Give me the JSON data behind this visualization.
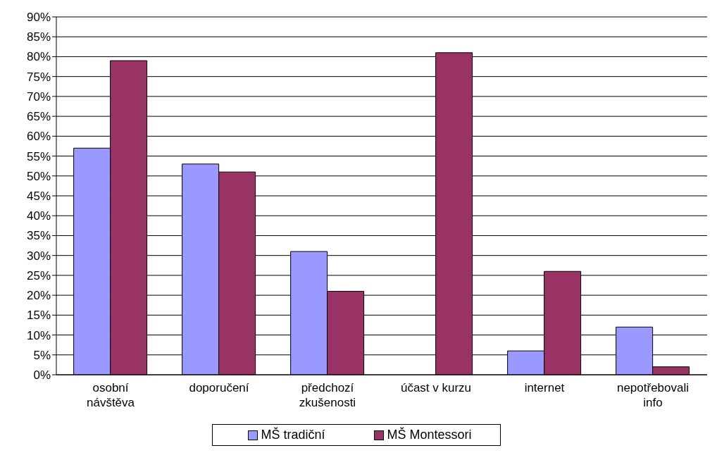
{
  "chart_data": {
    "type": "bar",
    "categories": [
      "osobní návštěva",
      "doporučení",
      "předchozí zkušenosti",
      "účast v kurzu",
      "internet",
      "nepotřebovali info"
    ],
    "series": [
      {
        "name": "MŠ tradiční",
        "color": "#9999ff",
        "values": [
          57,
          53,
          31,
          0,
          6,
          12
        ]
      },
      {
        "name": "MŠ Montessori",
        "color": "#993366",
        "values": [
          79,
          51,
          21,
          81,
          26,
          2
        ]
      }
    ],
    "ylim": [
      0,
      90
    ],
    "yticks": [
      {
        "value": 0,
        "label": "0%"
      },
      {
        "value": 5,
        "label": "5%"
      },
      {
        "value": 10,
        "label": "10%"
      },
      {
        "value": 15,
        "label": "15%"
      },
      {
        "value": 20,
        "label": "20%"
      },
      {
        "value": 25,
        "label": "25%"
      },
      {
        "value": 30,
        "label": "30%"
      },
      {
        "value": 35,
        "label": "35%"
      },
      {
        "value": 40,
        "label": "40%"
      },
      {
        "value": 45,
        "label": "45%"
      },
      {
        "value": 50,
        "label": "50%"
      },
      {
        "value": 55,
        "label": "55%"
      },
      {
        "value": 60,
        "label": "60%"
      },
      {
        "value": 65,
        "label": "65%"
      },
      {
        "value": 70,
        "label": "70%"
      },
      {
        "value": 75,
        "label": "75%"
      },
      {
        "value": 80,
        "label": "80%"
      },
      {
        "value": 85,
        "label": "85%"
      },
      {
        "value": 90,
        "label": "90%"
      }
    ],
    "grid": "y",
    "legend": "bottom"
  }
}
